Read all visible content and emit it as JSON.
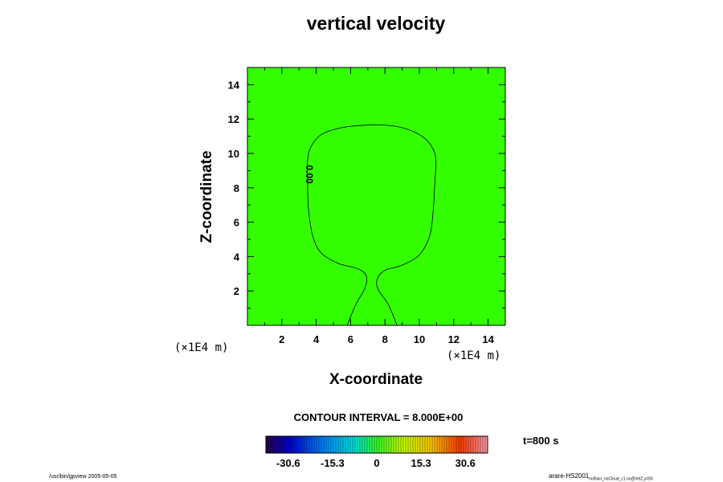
{
  "chart_data": {
    "type": "contour",
    "title": "vertical velocity",
    "xlabel": "X-coordinate",
    "ylabel": "Z-coordinate",
    "x_unit": "(×1E4 m)",
    "y_unit": "(×1E4 m)",
    "xlim": [
      0,
      15
    ],
    "ylim": [
      0,
      15
    ],
    "x_ticks": [
      2,
      4,
      6,
      8,
      10,
      12,
      14
    ],
    "y_ticks": [
      2,
      4,
      6,
      8,
      10,
      12,
      14
    ],
    "fill_color": "#33ff00",
    "contour_level_label": "0.00",
    "contour_interval_text": "CONTOUR INTERVAL = 8.000E+00",
    "time_label": "t=800 s",
    "colorbar": {
      "min": -38.3,
      "max": 38.3,
      "tick_labels": [
        "-30.6",
        "-15.3",
        "0",
        "15.3",
        "30.6"
      ],
      "tick_values": [
        -30.6,
        -15.3,
        0,
        15.3,
        30.6
      ]
    },
    "contour_line": [
      [
        5.8,
        0.0
      ],
      [
        6.3,
        1.2
      ],
      [
        6.85,
        2.2
      ],
      [
        6.9,
        2.9
      ],
      [
        6.4,
        3.3
      ],
      [
        5.3,
        3.6
      ],
      [
        4.3,
        4.2
      ],
      [
        3.8,
        5.2
      ],
      [
        3.55,
        6.8
      ],
      [
        3.5,
        8.3
      ],
      [
        3.5,
        9.6
      ],
      [
        3.7,
        10.4
      ],
      [
        4.3,
        11.1
      ],
      [
        5.5,
        11.5
      ],
      [
        7.0,
        11.65
      ],
      [
        8.5,
        11.6
      ],
      [
        9.7,
        11.25
      ],
      [
        10.5,
        10.7
      ],
      [
        10.95,
        9.8
      ],
      [
        10.9,
        8.3
      ],
      [
        10.8,
        6.6
      ],
      [
        10.6,
        5.2
      ],
      [
        10.0,
        4.1
      ],
      [
        9.0,
        3.5
      ],
      [
        8.0,
        3.2
      ],
      [
        7.55,
        2.7
      ],
      [
        7.6,
        2.1
      ],
      [
        8.2,
        1.2
      ],
      [
        8.7,
        0.0
      ]
    ]
  },
  "footer": {
    "left": "/usr/bin/gpview 2005-05-05",
    "right_main": "arare-HS2001",
    "right_sub": "noRain_noCloud_c1.nc@VelZ,y=50"
  }
}
